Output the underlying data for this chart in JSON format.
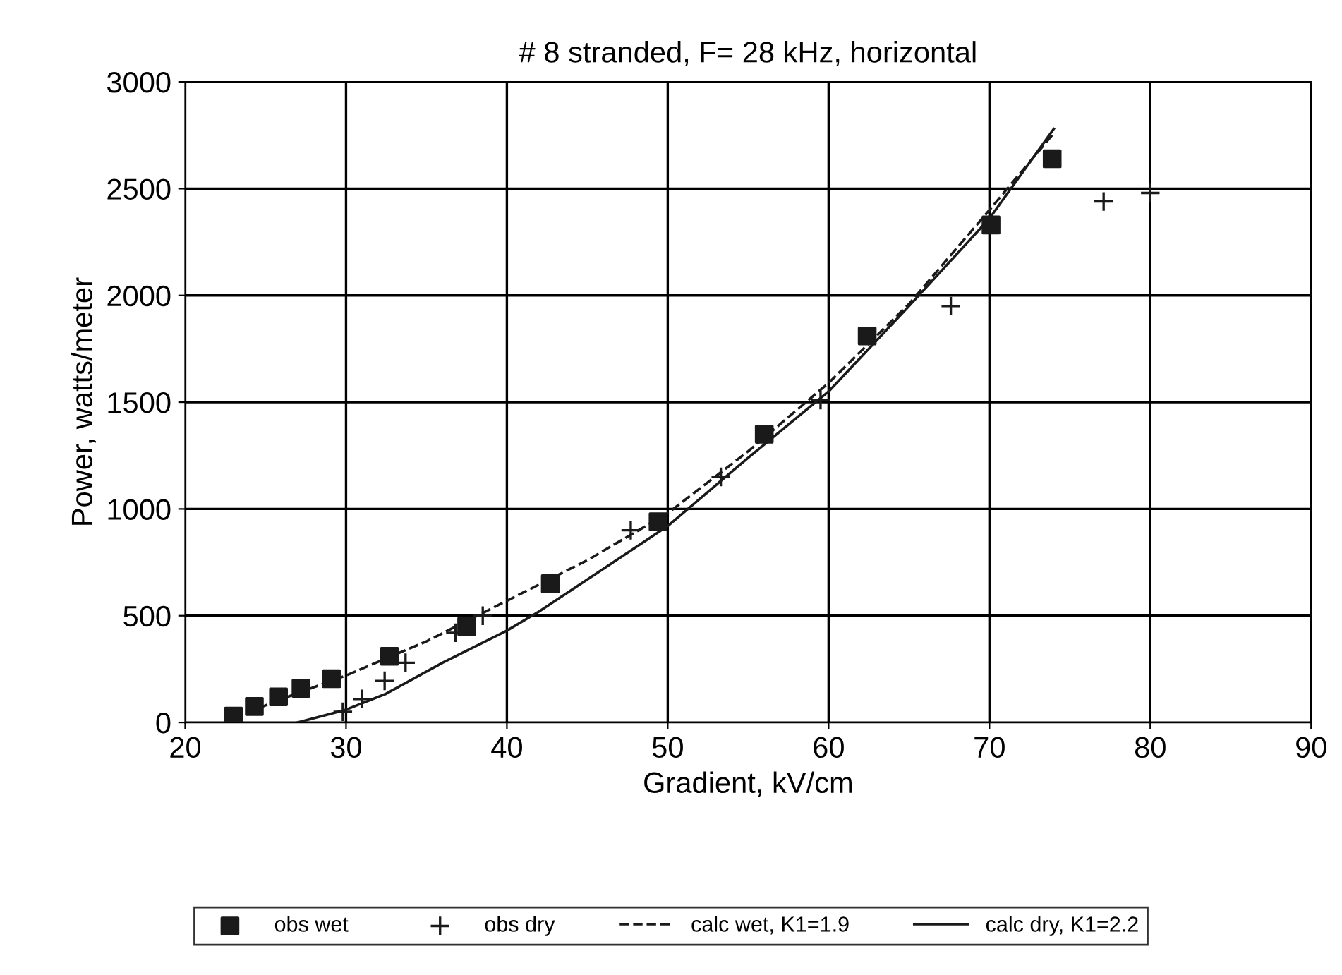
{
  "chart_data": {
    "type": "scatter",
    "title": "# 8 stranded, F= 28 kHz, horizontal",
    "xlabel": "Gradient, kV/cm",
    "ylabel": "Power, watts/meter",
    "xlim": [
      20,
      90
    ],
    "ylim": [
      0,
      3000
    ],
    "xticks": [
      20,
      30,
      40,
      50,
      60,
      70,
      80,
      90
    ],
    "yticks": [
      0,
      500,
      1000,
      1500,
      2000,
      2500,
      3000
    ],
    "grid": true,
    "legend": "bottom",
    "series": [
      {
        "name": "obs wet",
        "marker": "square",
        "color": "#1a1a1a",
        "x": [
          23.0,
          24.3,
          25.8,
          27.2,
          29.1,
          32.7,
          37.5,
          42.7,
          49.4,
          56.0,
          62.4,
          70.1,
          73.9
        ],
        "values": [
          30,
          75,
          120,
          160,
          205,
          310,
          450,
          650,
          940,
          1350,
          1810,
          2330,
          2640
        ]
      },
      {
        "name": "obs dry",
        "marker": "cross",
        "color": "#1a1a1a",
        "x": [
          29.8,
          31.0,
          32.4,
          33.7,
          36.8,
          38.5,
          47.7,
          53.3,
          59.5,
          67.6,
          77.1,
          80.0
        ],
        "values": [
          50,
          110,
          195,
          280,
          420,
          500,
          900,
          1150,
          1510,
          1950,
          2440,
          2480
        ]
      },
      {
        "name": "calc wet, K1=1.9",
        "type": "line",
        "line_style": "dashed",
        "marker": "none",
        "color": "#1a1a1a",
        "x": [
          23,
          26,
          30,
          35,
          40,
          45,
          50,
          55,
          60,
          65,
          70,
          74
        ],
        "values": [
          20,
          110,
          220,
          380,
          570,
          760,
          980,
          1270,
          1590,
          1960,
          2400,
          2760
        ]
      },
      {
        "name": "calc dry, K1=2.2",
        "type": "line",
        "line_style": "solid",
        "marker": "none",
        "color": "#1a1a1a",
        "x": [
          27,
          30,
          32.5,
          36,
          40,
          42,
          46,
          50,
          55,
          60,
          65,
          70,
          74
        ],
        "values": [
          0,
          60,
          135,
          280,
          430,
          520,
          720,
          920,
          1240,
          1550,
          1950,
          2360,
          2780
        ]
      }
    ]
  }
}
